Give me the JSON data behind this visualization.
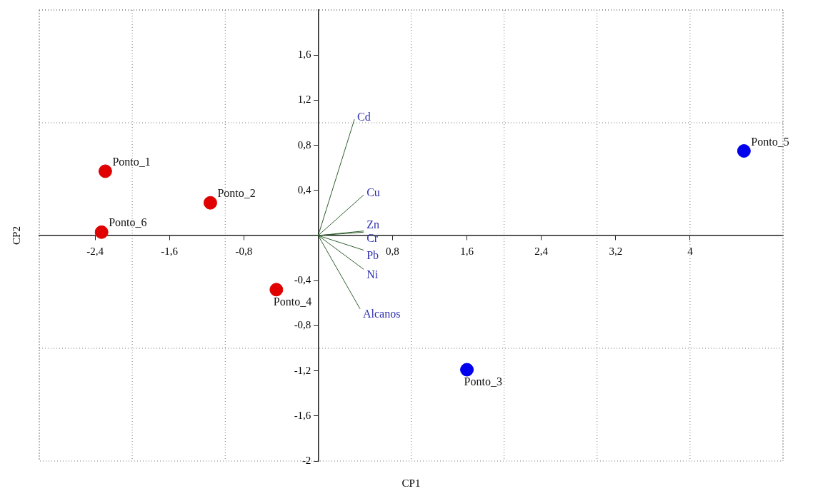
{
  "chart_data": {
    "type": "scatter",
    "xlabel": "CP1",
    "ylabel": "CP2",
    "xlim": [
      -3,
      5
    ],
    "ylim": [
      -2,
      2
    ],
    "xticks": [
      {
        "value": -3,
        "label": null
      },
      {
        "value": -2.4,
        "label": "-2,4"
      },
      {
        "value": -2,
        "label": null
      },
      {
        "value": -1.6,
        "label": "-1,6"
      },
      {
        "value": -1,
        "label": null
      },
      {
        "value": -0.8,
        "label": "-0,8"
      },
      {
        "value": 0.8,
        "label": "0,8"
      },
      {
        "value": 1,
        "label": null
      },
      {
        "value": 1.6,
        "label": "1,6"
      },
      {
        "value": 2,
        "label": null
      },
      {
        "value": 2.4,
        "label": "2,4"
      },
      {
        "value": 3,
        "label": null
      },
      {
        "value": 3.2,
        "label": "3,2"
      },
      {
        "value": 4,
        "label": null
      },
      4,
      {
        "value": 5,
        "label": null
      }
    ],
    "yticks": [
      -2,
      {
        "value": -1.6,
        "label": "-1,6"
      },
      {
        "value": -1.2,
        "label": "-1,2"
      },
      {
        "value": -1,
        "label": null
      },
      {
        "value": -0.8,
        "label": "-0,8"
      },
      {
        "value": -0.4,
        "label": "-0,4"
      },
      {
        "value": 0.4,
        "label": "0,4"
      },
      {
        "value": 0.8,
        "label": "0,8"
      },
      {
        "value": 1,
        "label": null
      },
      {
        "value": 1.2,
        "label": "1,2"
      },
      {
        "value": 1.6,
        "label": "1,6"
      },
      {
        "value": 2,
        "label": null
      }
    ],
    "grid": true,
    "legend": false,
    "series": [
      {
        "type": "scatter",
        "marker": "circle",
        "color": "#e00000",
        "x": [
          -2.29,
          -1.16,
          -2.33,
          -0.45
        ],
        "values": [
          0.57,
          0.29,
          0.03,
          -0.48
        ]
      },
      {
        "type": "scatter",
        "marker": "circle",
        "color": "#0000ee",
        "x": [
          1.6,
          4.58
        ],
        "values": [
          -1.19,
          0.75
        ]
      },
      {
        "type": "line",
        "marker": "none",
        "name": "Cd",
        "color": "#2f5f2f",
        "x": [
          0,
          0.39
        ],
        "values": [
          0,
          1.03
        ]
      },
      {
        "type": "line",
        "marker": "none",
        "name": "Cu",
        "color": "#2f5f2f",
        "x": [
          0,
          0.49
        ],
        "values": [
          0,
          0.36
        ]
      },
      {
        "type": "line",
        "marker": "none",
        "name": "Zn",
        "color": "#2f5f2f",
        "x": [
          0,
          0.49
        ],
        "values": [
          0,
          0.04
        ]
      },
      {
        "type": "line",
        "marker": "none",
        "name": "Cr",
        "color": "#2f5f2f",
        "x": [
          0,
          0.49
        ],
        "values": [
          0,
          0.03
        ]
      },
      {
        "type": "line",
        "marker": "none",
        "name": "Pb",
        "color": "#2f5f2f",
        "x": [
          0,
          0.49
        ],
        "values": [
          0,
          -0.13
        ]
      },
      {
        "type": "line",
        "marker": "none",
        "name": "Ni",
        "color": "#2f5f2f",
        "x": [
          0,
          0.49
        ],
        "values": [
          0,
          -0.3
        ]
      },
      {
        "type": "line",
        "marker": "none",
        "name": "Alcanos",
        "color": "#2f5f2f",
        "x": [
          0,
          0.45
        ],
        "values": [
          0,
          -0.65
        ]
      }
    ],
    "annotations": [
      {
        "text": "Ponto_1",
        "x": -2.29,
        "y": 0.57
      },
      {
        "text": "Ponto_2",
        "x": -1.16,
        "y": 0.29
      },
      {
        "text": "Ponto_6",
        "x": -2.33,
        "y": 0.03
      },
      {
        "text": "Ponto_4",
        "x": -0.45,
        "y": -0.48
      },
      {
        "text": "Ponto_3",
        "x": 1.6,
        "y": -1.19
      },
      {
        "text": "Ponto_5",
        "x": 4.58,
        "y": 0.75
      }
    ]
  }
}
